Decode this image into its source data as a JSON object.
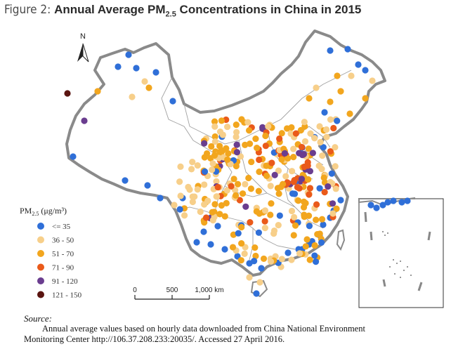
{
  "figure": {
    "prefix": "Figure 2: ",
    "title_main": "Annual Average PM",
    "title_sub": "2.5",
    "title_rest": " Concentrations in China in 2015"
  },
  "map": {
    "north_label": "N",
    "legend": {
      "title_prefix": "PM",
      "title_sub": "2.5",
      "title_unit": "(μg/m³)",
      "items": [
        {
          "label": "<= 35",
          "color": "#2f6fd8"
        },
        {
          "label": "36  -  50",
          "color": "#f7cf8a"
        },
        {
          "label": "51  -  70",
          "color": "#f2a61e"
        },
        {
          "label": "71  -  90",
          "color": "#ea5a1a"
        },
        {
          "label": "91  -  120",
          "color": "#6a3d8f"
        },
        {
          "label": "121  -  150",
          "color": "#5a1410"
        }
      ]
    },
    "scale": {
      "ticks": [
        "0",
        "500",
        "1,000 km"
      ]
    },
    "colors": {
      "border": "#8a8a8a",
      "province": "#9a9a9a",
      "land": "#ffffff"
    }
  },
  "source": {
    "label": "Source:",
    "line1": "Annual average values based on hourly data downloaded from China National Environment",
    "line2": "Monitoring Center http://106.37.208.233:20035/. Accessed 27 April 2016."
  }
}
